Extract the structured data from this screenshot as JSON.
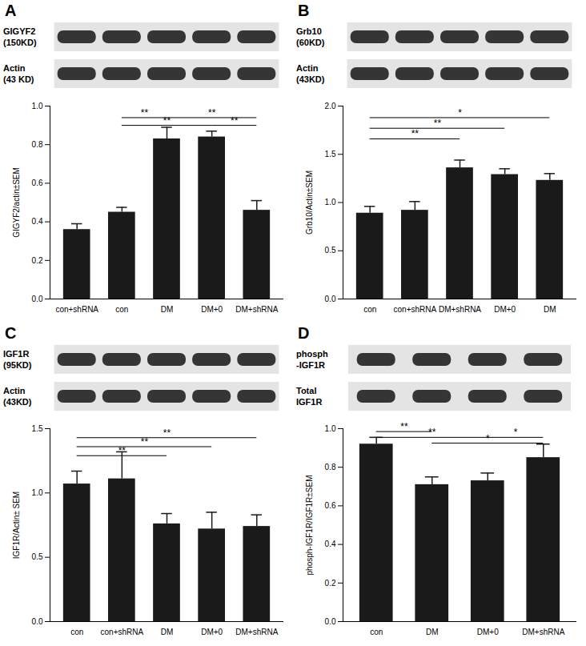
{
  "chart_data": [
    {
      "type": "bar",
      "title": "A",
      "blot_labels": [
        [
          "GIGYF2",
          "(150KD)"
        ],
        [
          "Actin",
          "(43 KD)"
        ]
      ],
      "y_label": "GIGYF2/actin±SEM",
      "categories": [
        "con+shRNA",
        "con",
        "DM",
        "DM+0",
        "DM+shRNA"
      ],
      "values": [
        0.36,
        0.45,
        0.83,
        0.84,
        0.46
      ],
      "errors": [
        0.03,
        0.025,
        0.06,
        0.03,
        0.05
      ],
      "color": "#1a1a1a",
      "ylim": [
        0,
        1.0
      ],
      "yticks": [
        {
          "value": 0,
          "label": "0.0"
        },
        0.2,
        0.4,
        0.6,
        0.8,
        {
          "value": 1,
          "label": "1.0"
        }
      ],
      "significance": [
        {
          "from": "con",
          "to": "DM",
          "y": 0.94,
          "label": "**"
        },
        {
          "from": "con",
          "to": "DM+0",
          "y": 0.9,
          "label": "**"
        },
        {
          "from": "DM",
          "to": "DM+shRNA",
          "y": 0.94,
          "label": "**"
        },
        {
          "from": "DM+0",
          "to": "DM+shRNA",
          "y": 0.9,
          "label": "**"
        }
      ]
    },
    {
      "type": "bar",
      "title": "B",
      "blot_labels": [
        [
          "Grb10",
          "(60KD)"
        ],
        [
          "Actin",
          "(43KD)"
        ]
      ],
      "y_label": "Grb10/Actin±SEM",
      "categories": [
        "con",
        "con+shRNA",
        "DM+shRNA",
        "DM+0",
        "DM"
      ],
      "values": [
        0.89,
        0.92,
        1.36,
        1.29,
        1.23
      ],
      "errors": [
        0.07,
        0.09,
        0.08,
        0.06,
        0.07
      ],
      "color": "#1a1a1a",
      "ylim": [
        0,
        2.0
      ],
      "yticks": [
        {
          "value": 0,
          "label": "0.0"
        },
        0.5,
        {
          "value": 1,
          "label": "1.0"
        },
        1.5,
        {
          "value": 2,
          "label": "2.0"
        }
      ],
      "significance": [
        {
          "from": "con",
          "to": "DM",
          "y": 1.88,
          "label": "*"
        },
        {
          "from": "con",
          "to": "DM+0",
          "y": 1.77,
          "label": "**"
        },
        {
          "from": "con",
          "to": "DM+shRNA",
          "y": 1.66,
          "label": "**"
        }
      ]
    },
    {
      "type": "bar",
      "title": "C",
      "blot_labels": [
        [
          "IGF1R",
          "(95KD)"
        ],
        [
          "Actin",
          "(43KD)"
        ]
      ],
      "y_label": "IGF1R/Actin± SEM",
      "categories": [
        "con",
        "con+shRNA",
        "DM",
        "DM+0",
        "DM+shRNA"
      ],
      "values": [
        1.07,
        1.11,
        0.76,
        0.72,
        0.74
      ],
      "errors": [
        0.1,
        0.21,
        0.08,
        0.13,
        0.09
      ],
      "color": "#1a1a1a",
      "ylim": [
        0,
        1.5
      ],
      "yticks": [
        {
          "value": 0,
          "label": "0.0"
        },
        0.5,
        {
          "value": 1,
          "label": "1.0"
        },
        1.5
      ],
      "significance": [
        {
          "from": "con",
          "to": "DM+shRNA",
          "y": 1.43,
          "label": "**"
        },
        {
          "from": "con",
          "to": "DM+0",
          "y": 1.36,
          "label": "**"
        },
        {
          "from": "con",
          "to": "DM",
          "y": 1.29,
          "label": "**"
        }
      ]
    },
    {
      "type": "bar",
      "title": "D",
      "blot_labels": [
        [
          "phosph",
          "-IGF1R"
        ],
        [
          "Total",
          "IGF1R"
        ]
      ],
      "y_label": "phosph-IGF1R/IGF1R±SEM",
      "categories": [
        "con",
        "DM",
        "DM+0",
        "DM+shRNA"
      ],
      "values": [
        0.92,
        0.71,
        0.73,
        0.85
      ],
      "errors": [
        0.035,
        0.04,
        0.04,
        0.07
      ],
      "color": "#1a1a1a",
      "ylim": [
        0,
        1.0
      ],
      "yticks": [
        {
          "value": 0,
          "label": "0.0"
        },
        0.2,
        0.4,
        0.6,
        0.8,
        {
          "value": 1,
          "label": "1.0"
        }
      ],
      "significance": [
        {
          "from": "con",
          "to": "DM",
          "y": 0.985,
          "label": "**"
        },
        {
          "from": "con",
          "to": "DM+0",
          "y": 0.955,
          "label": "**"
        },
        {
          "from": "DM+0",
          "to": "DM+shRNA",
          "y": 0.955,
          "label": "*"
        },
        {
          "from": "DM",
          "to": "DM+shRNA",
          "y": 0.925,
          "label": "*"
        }
      ]
    }
  ]
}
